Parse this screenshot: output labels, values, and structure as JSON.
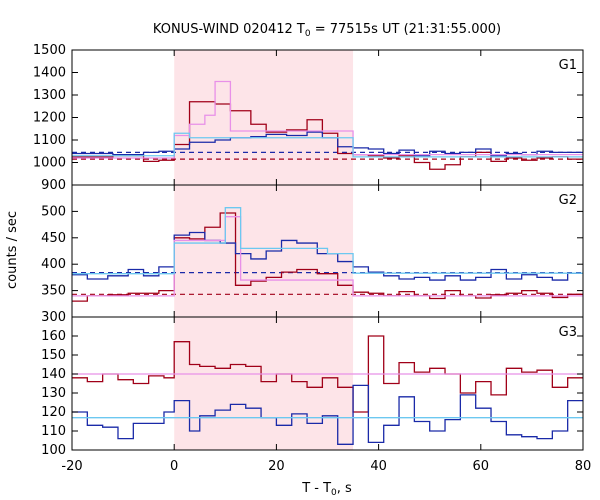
{
  "chart_data": {
    "type": "line",
    "title_prefix": "KONUS-WIND 020412 T",
    "title_sub": "0",
    "title_suffix": " = 77515s UT (21:31:55.000)",
    "xlabel": "T - T",
    "xlabel_sub": "0",
    "xlabel_suffix": ", s",
    "ylabel": "counts / sec",
    "xlim": [
      -20,
      80
    ],
    "xticks": [
      -20,
      0,
      20,
      40,
      60,
      80
    ],
    "shaded_interval": [
      0,
      35
    ],
    "colors": {
      "dark_red": "#a00018",
      "blue": "#1a2aa8",
      "pink": "#e890e8",
      "light_blue": "#6cc8f0",
      "shade": "#fde4e8"
    },
    "panels": [
      {
        "label": "G1",
        "ylim": [
          900,
          1500
        ],
        "yticks": [
          900,
          1000,
          1100,
          1200,
          1300,
          1400,
          1500
        ],
        "background_dark_red": 1015,
        "background_blue": 1045,
        "series": [
          {
            "color_key": "dark_red",
            "edges": [
              -20,
              -12,
              -6,
              -3,
              0,
              3,
              8,
              11,
              15,
              18,
              22,
              26,
              29,
              32,
              35,
              38,
              41,
              44,
              47,
              50,
              53,
              56,
              59,
              62,
              65,
              68,
              71,
              74,
              77,
              80
            ],
            "values": [
              1025,
              1030,
              1005,
              1010,
              1080,
              1270,
              1260,
              1230,
              1170,
              1135,
              1145,
              1190,
              1130,
              1040,
              1035,
              1030,
              1020,
              1030,
              1000,
              970,
              990,
              1025,
              1045,
              1005,
              1020,
              1010,
              1020,
              1025,
              1015
            ]
          },
          {
            "color_key": "blue",
            "edges": [
              -20,
              -12,
              -6,
              -3,
              0,
              3,
              8,
              11,
              15,
              18,
              22,
              26,
              29,
              32,
              35,
              38,
              41,
              44,
              47,
              50,
              53,
              56,
              59,
              62,
              65,
              68,
              71,
              74,
              77,
              80
            ],
            "values": [
              1040,
              1035,
              1045,
              1050,
              1060,
              1090,
              1100,
              1110,
              1115,
              1125,
              1120,
              1135,
              1110,
              1070,
              1065,
              1060,
              1040,
              1055,
              1030,
              1050,
              1040,
              1045,
              1060,
              1030,
              1040,
              1035,
              1050,
              1045,
              1045
            ]
          },
          {
            "color_key": "pink",
            "edges": [
              -20,
              0,
              3,
              6,
              8,
              11,
              13,
              35,
              80
            ],
            "values": [
              1020,
              1120,
              1170,
              1210,
              1360,
              1140,
              1140,
              1035
            ]
          },
          {
            "color_key": "light_blue",
            "edges": [
              -20,
              0,
              3,
              13,
              35,
              80
            ],
            "values": [
              1030,
              1130,
              1110,
              1110,
              1025
            ]
          }
        ]
      },
      {
        "label": "G2",
        "ylim": [
          300,
          550
        ],
        "yticks": [
          300,
          350,
          400,
          450,
          500
        ],
        "background_dark_red": 343,
        "background_blue": 384,
        "series": [
          {
            "color_key": "dark_red",
            "edges": [
              -20,
              -17,
              -13,
              -9,
              -6,
              -3,
              0,
              3,
              6,
              9,
              12,
              15,
              18,
              21,
              24,
              28,
              32,
              35,
              38,
              41,
              44,
              47,
              50,
              53,
              56,
              59,
              62,
              65,
              68,
              71,
              74,
              77,
              80
            ],
            "values": [
              330,
              340,
              342,
              345,
              345,
              350,
              450,
              448,
              470,
              497,
              360,
              368,
              375,
              385,
              390,
              382,
              360,
              347,
              345,
              340,
              348,
              340,
              335,
              350,
              340,
              336,
              342,
              345,
              350,
              345,
              337,
              343
            ]
          },
          {
            "color_key": "blue",
            "edges": [
              -20,
              -17,
              -13,
              -9,
              -6,
              -3,
              0,
              3,
              6,
              9,
              12,
              15,
              18,
              21,
              24,
              28,
              32,
              35,
              38,
              41,
              44,
              47,
              50,
              53,
              56,
              59,
              62,
              65,
              68,
              71,
              74,
              77,
              80
            ],
            "values": [
              380,
              372,
              378,
              390,
              378,
              395,
              455,
              460,
              445,
              440,
              420,
              410,
              425,
              445,
              440,
              420,
              405,
              395,
              385,
              378,
              372,
              375,
              370,
              378,
              370,
              375,
              390,
              372,
              380,
              375,
              370,
              383
            ]
          },
          {
            "color_key": "pink",
            "edges": [
              -20,
              0,
              3,
              10,
              13,
              35,
              80
            ],
            "values": [
              340,
              445,
              445,
              490,
              370,
              340
            ]
          },
          {
            "color_key": "light_blue",
            "edges": [
              -20,
              0,
              3,
              10,
              13,
              30,
              35,
              80
            ],
            "values": [
              382,
              440,
              440,
              507,
              430,
              420,
              383
            ]
          }
        ]
      },
      {
        "label": "G3",
        "ylim": [
          100,
          170
        ],
        "yticks": [
          100,
          110,
          120,
          130,
          140,
          150,
          160
        ],
        "series": [
          {
            "color_key": "dark_red",
            "edges": [
              -20,
              -17,
              -14,
              -11,
              -8,
              -5,
              -2,
              0,
              3,
              5,
              8,
              11,
              14,
              17,
              20,
              23,
              26,
              29,
              32,
              35,
              38,
              41,
              44,
              47,
              50,
              53,
              56,
              59,
              62,
              65,
              68,
              71,
              74,
              77,
              80
            ],
            "values": [
              138,
              136,
              140,
              137,
              135,
              139,
              138,
              157,
              145,
              144,
              143,
              145,
              144,
              136,
              140,
              136,
              133,
              138,
              133,
              120,
              160,
              135,
              146,
              141,
              143,
              140,
              130,
              136,
              129,
              143,
              141,
              142,
              133,
              138
            ]
          },
          {
            "color_key": "blue",
            "edges": [
              -20,
              -17,
              -14,
              -11,
              -8,
              -5,
              -2,
              0,
              3,
              5,
              8,
              11,
              14,
              17,
              20,
              23,
              26,
              29,
              32,
              35,
              38,
              41,
              44,
              47,
              50,
              53,
              56,
              59,
              62,
              65,
              68,
              71,
              74,
              77,
              80
            ],
            "values": [
              120,
              113,
              112,
              106,
              114,
              114,
              120,
              126,
              110,
              118,
              121,
              124,
              122,
              117,
              113,
              119,
              114,
              118,
              103,
              134,
              104,
              113,
              128,
              115,
              110,
              116,
              129,
              122,
              115,
              108,
              107,
              106,
              110,
              126
            ]
          },
          {
            "color_key": "pink",
            "edges": [
              -20,
              80
            ],
            "values": [
              140,
              140
            ]
          },
          {
            "color_key": "light_blue",
            "edges": [
              -20,
              80
            ],
            "values": [
              117,
              117
            ]
          }
        ]
      }
    ]
  }
}
